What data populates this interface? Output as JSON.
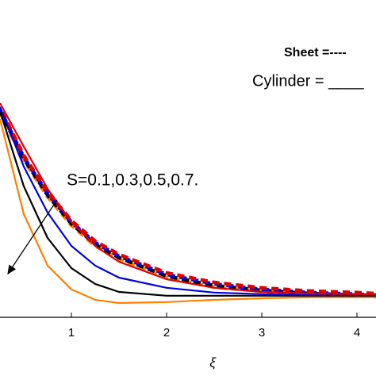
{
  "chart_data": {
    "type": "line",
    "x_label": "ξ",
    "legend_texts": [
      "Sheet =----",
      "Cylinder = ____"
    ],
    "annotation": "S=0.1,0.3,0.5,0.7.",
    "x": [
      0.25,
      0.5,
      0.75,
      1,
      1.25,
      1.5,
      2,
      2.5,
      3,
      3.5,
      4,
      4.2
    ],
    "xlim": [
      0.25,
      4.2
    ],
    "xticks": [
      1,
      2,
      3,
      4
    ],
    "ylim": [
      0,
      1
    ],
    "series": [
      {
        "color": "#ff8000",
        "line_style": "dashed",
        "values": [
          0.645,
          0.495,
          0.38,
          0.29,
          0.225,
          0.183,
          0.125,
          0.095,
          0.082,
          0.072,
          0.068,
          0.065
        ]
      },
      {
        "color": "#000000",
        "line_style": "dashed",
        "values": [
          0.65,
          0.5,
          0.385,
          0.295,
          0.23,
          0.188,
          0.13,
          0.1,
          0.085,
          0.075,
          0.07,
          0.068
        ]
      },
      {
        "color": "#0000e0",
        "line_style": "dashed",
        "values": [
          0.655,
          0.505,
          0.39,
          0.3,
          0.235,
          0.193,
          0.135,
          0.105,
          0.088,
          0.078,
          0.073,
          0.07
        ]
      },
      {
        "color": "#e00000",
        "line_style": "dashed",
        "values": [
          0.66,
          0.51,
          0.395,
          0.305,
          0.24,
          0.198,
          0.14,
          0.11,
          0.093,
          0.083,
          0.078,
          0.075
        ]
      },
      {
        "color": "#ff8000",
        "line_style": "solid",
        "values": [
          0.625,
          0.325,
          0.163,
          0.088,
          0.055,
          0.045,
          0.048,
          0.055,
          0.06,
          0.063,
          0.063,
          0.063
        ]
      },
      {
        "color": "#000000",
        "line_style": "solid",
        "values": [
          0.65,
          0.413,
          0.25,
          0.155,
          0.105,
          0.08,
          0.068,
          0.068,
          0.068,
          0.068,
          0.068,
          0.068
        ]
      },
      {
        "color": "#0000e0",
        "line_style": "solid",
        "values": [
          0.663,
          0.475,
          0.33,
          0.225,
          0.163,
          0.125,
          0.093,
          0.078,
          0.073,
          0.07,
          0.07,
          0.07
        ]
      },
      {
        "color": "#e00000",
        "line_style": "solid",
        "values": [
          0.675,
          0.538,
          0.405,
          0.3,
          0.225,
          0.175,
          0.12,
          0.093,
          0.08,
          0.075,
          0.073,
          0.073
        ]
      }
    ]
  }
}
